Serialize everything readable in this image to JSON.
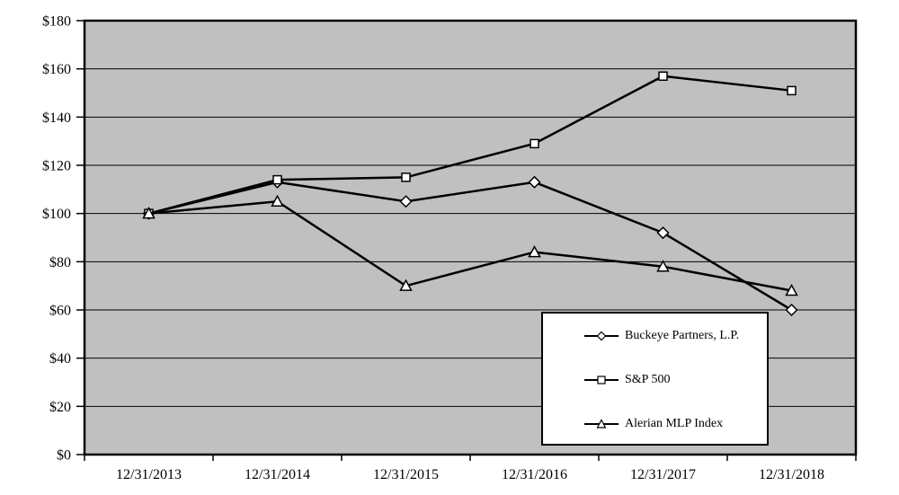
{
  "chart_data": {
    "type": "line",
    "title": "",
    "x_categories": [
      "12/31/2013",
      "12/31/2014",
      "12/31/2015",
      "12/31/2016",
      "12/31/2017",
      "12/31/2018"
    ],
    "series": [
      {
        "name": "Buckeye Partners, L.P.",
        "marker": "diamond",
        "values": [
          100,
          113,
          105,
          113,
          92,
          60
        ]
      },
      {
        "name": "S&P 500",
        "marker": "square",
        "values": [
          100,
          114,
          115,
          129,
          157,
          151
        ]
      },
      {
        "name": "Alerian MLP Index",
        "marker": "triangle",
        "values": [
          100,
          105,
          70,
          84,
          78,
          68
        ]
      }
    ],
    "y_axis": {
      "min": 0,
      "max": 180,
      "tick_step": 20,
      "tick_labels": [
        "$0",
        "$20",
        "$40",
        "$60",
        "$80",
        "$100",
        "$120",
        "$140",
        "$160",
        "$180"
      ]
    },
    "grid": true,
    "legend_position": "inside-bottom-right",
    "colors": {
      "plot_background": "#c0c0c0",
      "line": "#000000",
      "border": "#000000",
      "marker_fill": "#ffffff",
      "page_background": "#ffffff"
    }
  }
}
